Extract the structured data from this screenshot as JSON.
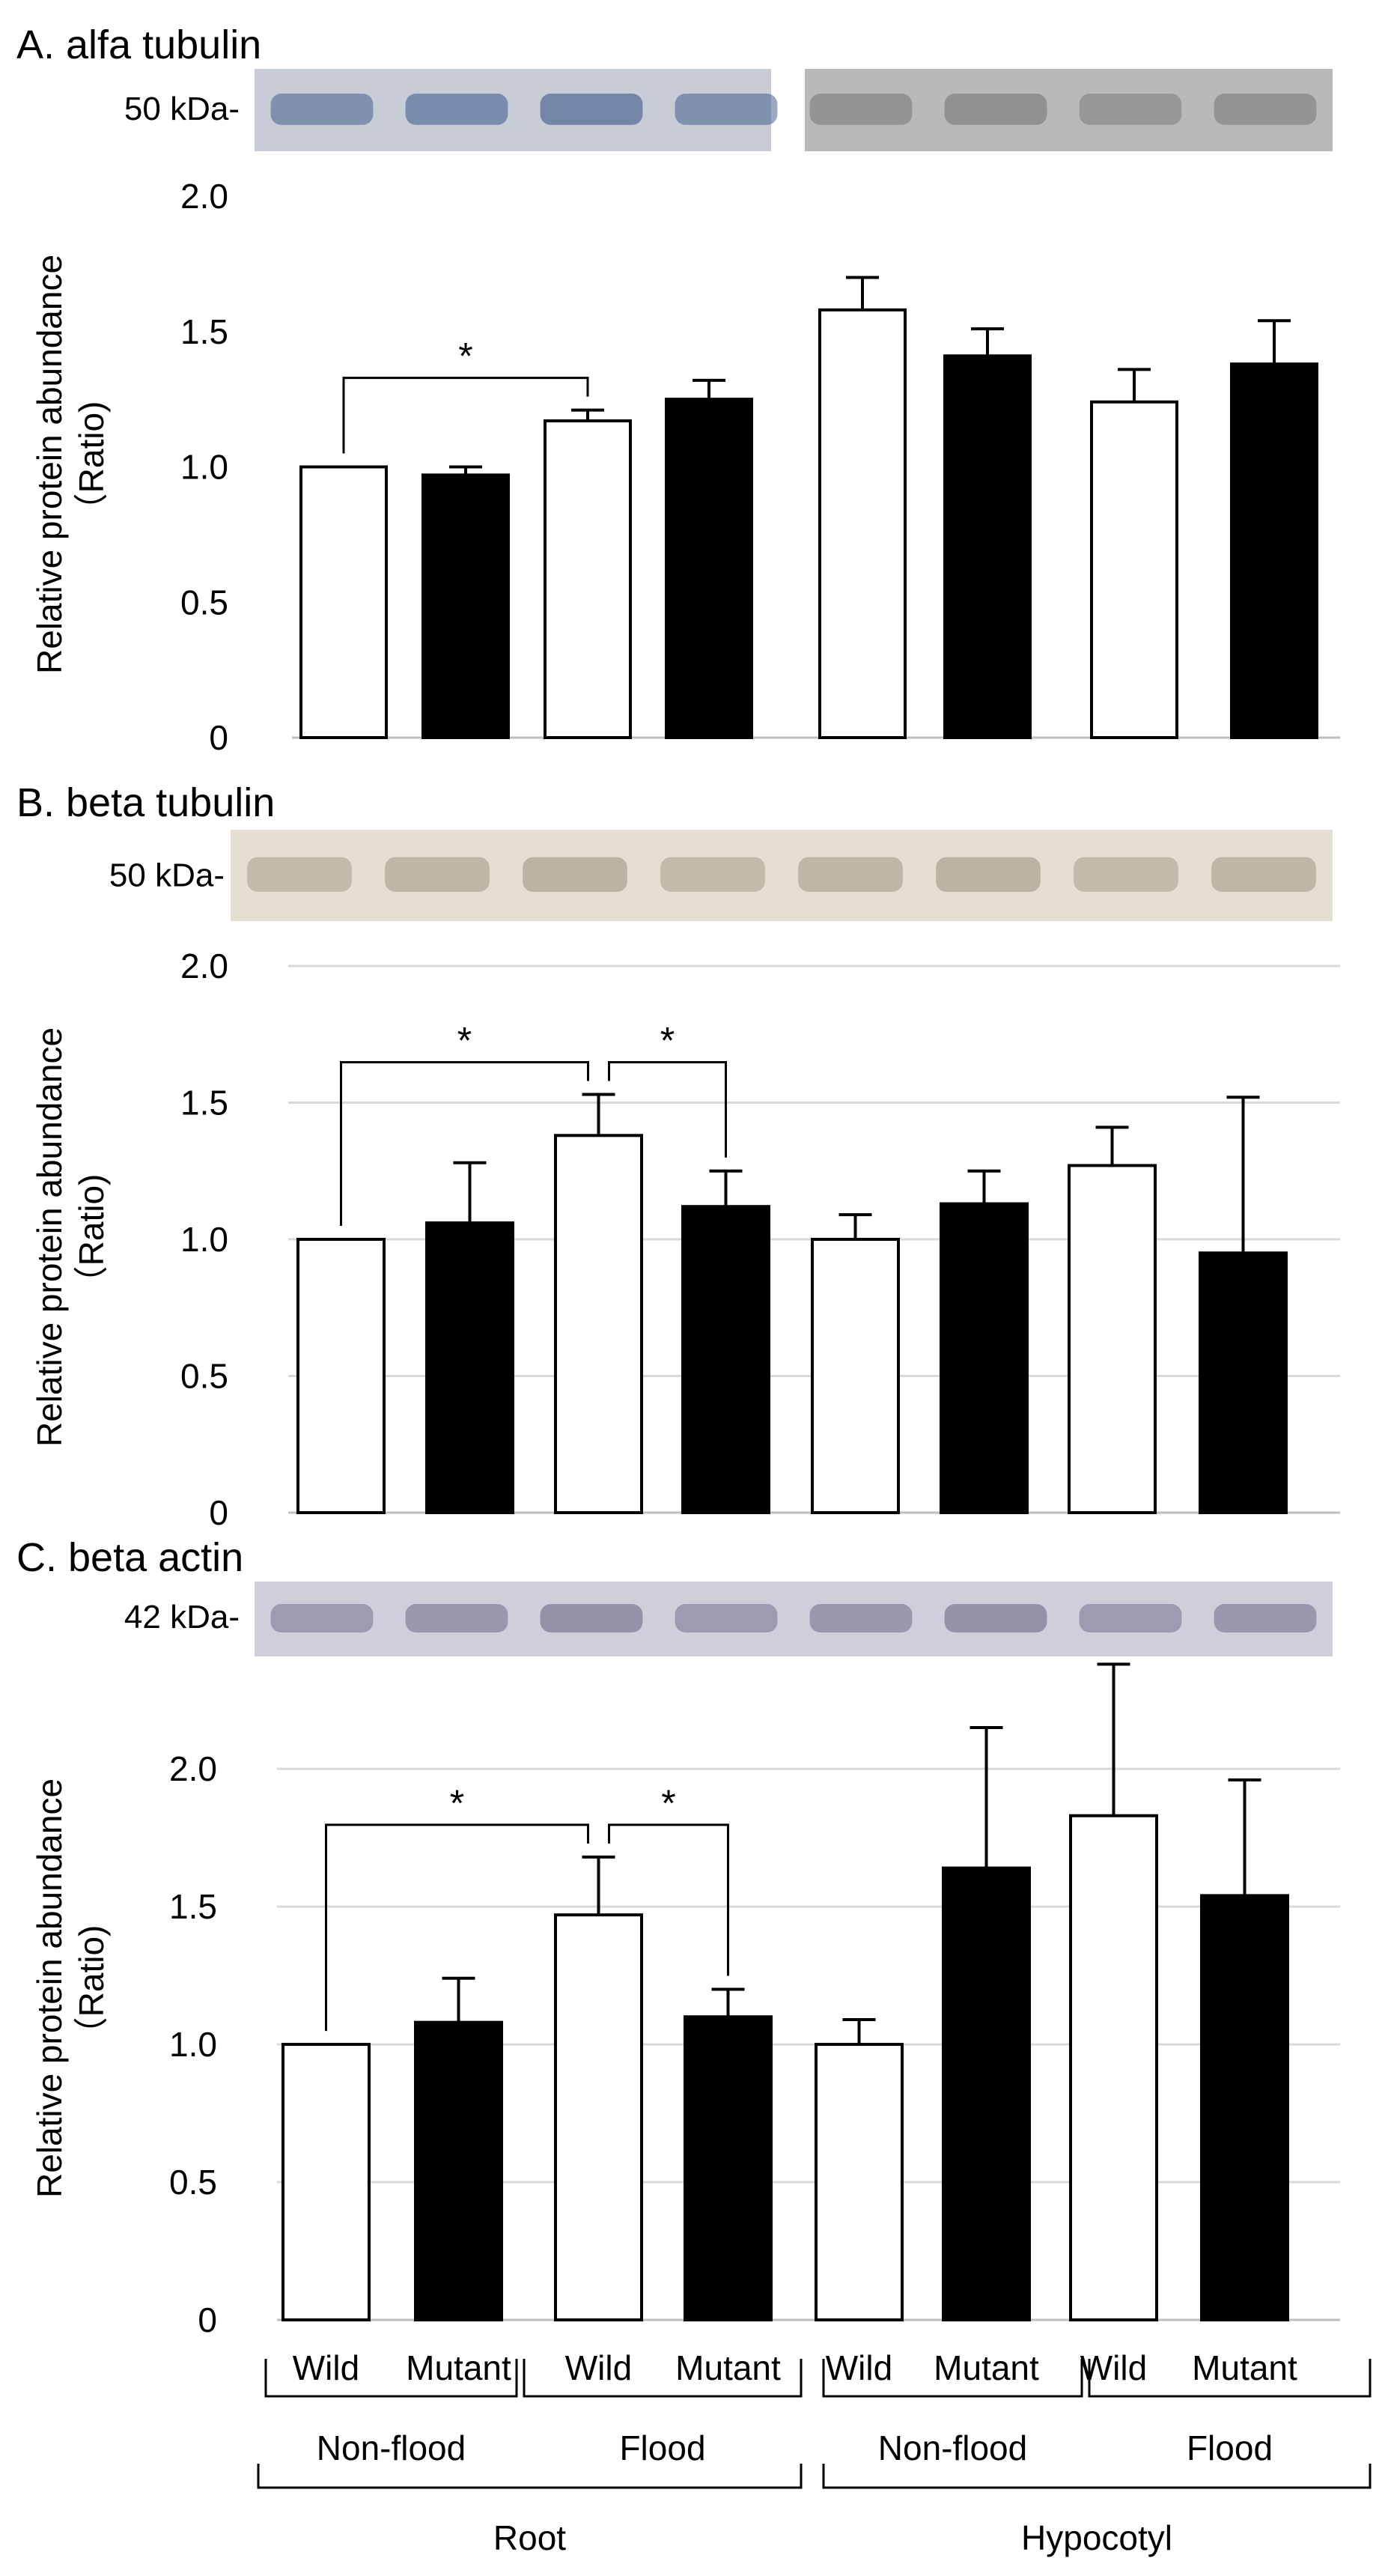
{
  "chart_data": [
    {
      "type": "bar",
      "title": "A. alfa tubulin",
      "blot_label": "50 kDa-",
      "ylabel": "Relative protein abundance\n（Ratio)",
      "ylim": [
        0,
        2.0
      ],
      "yticks": [
        "0",
        "0.5",
        "1.0",
        "1.5",
        "2.0"
      ],
      "ytick_values": [
        0,
        0.5,
        1.0,
        1.5,
        2.0
      ],
      "grid": false,
      "values": [
        1.0,
        0.97,
        1.17,
        1.25,
        1.58,
        1.41,
        1.24,
        1.38
      ],
      "errors": [
        0,
        0.03,
        0.04,
        0.07,
        0.12,
        0.1,
        0.12,
        0.16
      ],
      "significance": [
        {
          "from": 0,
          "to": 2,
          "label": "*"
        }
      ],
      "blot_colors": [
        "#46618f",
        "#7b7b7b"
      ]
    },
    {
      "type": "bar",
      "title": "B. beta tubulin",
      "blot_label": "50 kDa-",
      "ylabel": "Relative protein abundance\n（Ratio)",
      "ylim": [
        0,
        2.0
      ],
      "yticks": [
        "0",
        "0.5",
        "1.0",
        "1.5",
        "2.0"
      ],
      "ytick_values": [
        0,
        0.5,
        1.0,
        1.5,
        2.0
      ],
      "grid": true,
      "values": [
        1.0,
        1.06,
        1.38,
        1.12,
        1.0,
        1.13,
        1.27,
        0.95
      ],
      "errors": [
        0,
        0.22,
        0.15,
        0.13,
        0.09,
        0.12,
        0.14,
        0.57
      ],
      "significance": [
        {
          "from": 0,
          "to": 2,
          "label": "*"
        },
        {
          "from": 2,
          "to": 3,
          "label": "*"
        }
      ],
      "blot_colors": [
        "#a59c88"
      ]
    },
    {
      "type": "bar",
      "title": "C. beta actin",
      "blot_label": "42 kDa-",
      "ylabel": "Relative protein abundance\n（Ratio)",
      "ylim": [
        0,
        2.4
      ],
      "yticks": [
        "0",
        "0.5",
        "1.0",
        "1.5",
        "2.0"
      ],
      "ytick_values": [
        0,
        0.5,
        1.0,
        1.5,
        2.0
      ],
      "grid": true,
      "values": [
        1.0,
        1.08,
        1.47,
        1.1,
        1.0,
        1.64,
        1.83,
        1.54
      ],
      "errors": [
        0,
        0.16,
        0.21,
        0.1,
        0.09,
        0.51,
        0.55,
        0.42
      ],
      "significance": [
        {
          "from": 0,
          "to": 2,
          "label": "*"
        },
        {
          "from": 2,
          "to": 3,
          "label": "*"
        }
      ],
      "blot_colors": [
        "#74718e"
      ]
    }
  ],
  "x_axis": {
    "genotype_labels": [
      "Wild",
      "Mutant",
      "Wild",
      "Mutant",
      "Wild",
      "Mutant",
      "Wild",
      "Mutant"
    ],
    "condition_labels": [
      "Non-flood",
      "Flood",
      "Non-flood",
      "Flood"
    ],
    "tissue_labels": [
      "Root",
      "Hypocotyl"
    ]
  },
  "colors": {
    "wild_fill": "#ffffff",
    "mutant_fill": "#000000",
    "grid": "#d9d9d9"
  }
}
